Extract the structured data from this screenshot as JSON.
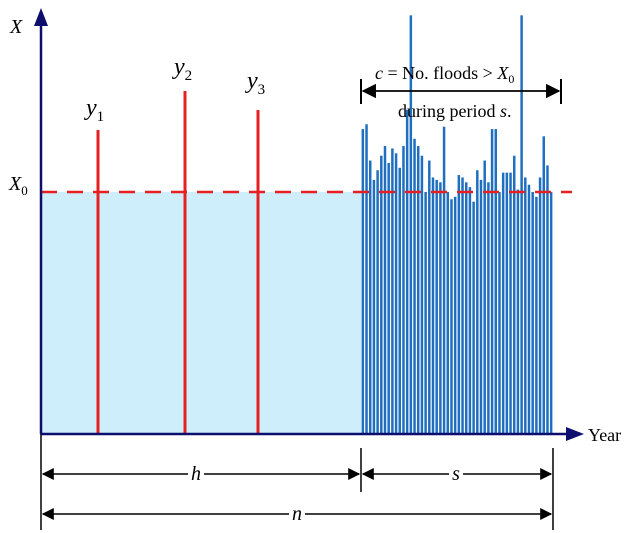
{
  "axes": {
    "y_label": "X",
    "x_label": "Year"
  },
  "threshold": {
    "label_main": "X",
    "label_sub": "0"
  },
  "peaks": [
    {
      "main": "y",
      "sub": "1"
    },
    {
      "main": "y",
      "sub": "2"
    },
    {
      "main": "y",
      "sub": "3"
    }
  ],
  "annotation": {
    "line1_c": "c",
    "line1_mid": " = No. floods > ",
    "line1_x": "X",
    "line1_sub": "0",
    "line2_text": "during period ",
    "line2_s": "s",
    "line2_dot": "."
  },
  "dimensions": {
    "h": "h",
    "s": "s",
    "n": "n"
  },
  "series_s_relative": [
    0.26,
    0.28,
    0.13,
    0.05,
    0.09,
    0.15,
    0.19,
    0.12,
    0.18,
    0.16,
    0.1,
    0.19,
    0.34,
    0.73,
    0.22,
    0.19,
    0.15,
    0.0,
    0.13,
    0.06,
    0.05,
    0.04,
    0.27,
    0.0,
    -0.03,
    -0.02,
    0.07,
    0.06,
    0.04,
    0.02,
    -0.04,
    0.09,
    0.05,
    0.13,
    0.04,
    0.26,
    0.26,
    0.0,
    0.08,
    0.08,
    0.08,
    0.15,
    0.01,
    0.73,
    0.06,
    0.03,
    0.0,
    -0.02,
    0.06,
    0.23,
    0.11,
    0.0
  ],
  "colors": {
    "axis": "#0d0d6e",
    "bar_blue": "#1f6fc0",
    "red": "#e62020",
    "fill": "#cdeefa"
  }
}
